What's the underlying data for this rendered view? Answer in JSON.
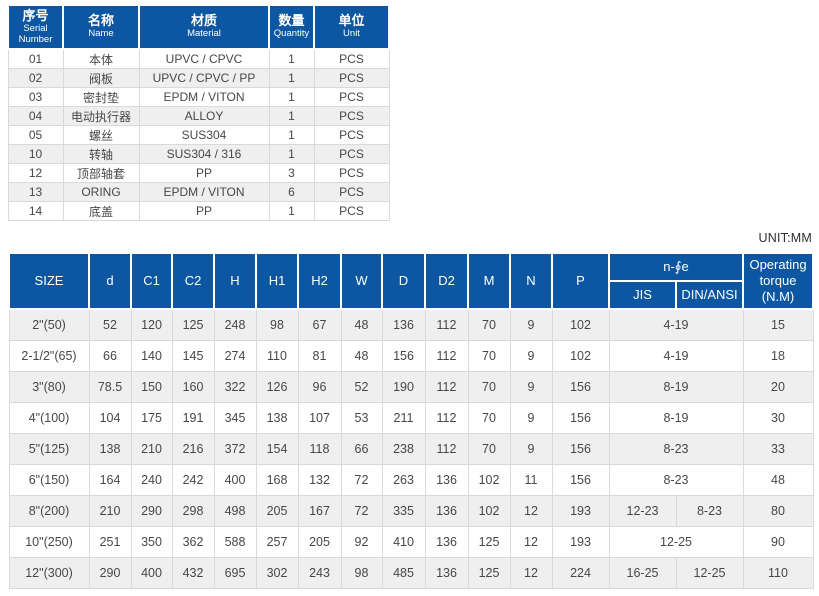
{
  "colors": {
    "header_blue": "#0d57a2",
    "stripe_gray": "#efefef",
    "border_gray": "#d9d9d9",
    "text_dark": "#474747"
  },
  "parts_table": {
    "columns": [
      {
        "zh": "序号",
        "en": "Serial Number"
      },
      {
        "zh": "名称",
        "en": "Name"
      },
      {
        "zh": "材质",
        "en": "Material"
      },
      {
        "zh": "数量",
        "en": "Quantity"
      },
      {
        "zh": "单位",
        "en": "Unit"
      }
    ],
    "rows": [
      [
        "01",
        "本体",
        "UPVC / CPVC",
        "1",
        "PCS"
      ],
      [
        "02",
        "阀板",
        "UPVC / CPVC / PP",
        "1",
        "PCS"
      ],
      [
        "03",
        "密封垫",
        "EPDM / VITON",
        "1",
        "PCS"
      ],
      [
        "04",
        "电动执行器",
        "ALLOY",
        "1",
        "PCS"
      ],
      [
        "05",
        "螺丝",
        "SUS304",
        "1",
        "PCS"
      ],
      [
        "10",
        "转轴",
        "SUS304 / 316",
        "1",
        "PCS"
      ],
      [
        "12",
        "顶部轴套",
        "PP",
        "3",
        "PCS"
      ],
      [
        "13",
        "ORING",
        "EPDM / VITON",
        "6",
        "PCS"
      ],
      [
        "14",
        "底盖",
        "PP",
        "1",
        "PCS"
      ]
    ]
  },
  "dimensions_table": {
    "unit_label": "UNIT:MM",
    "columns": [
      "SIZE",
      "d",
      "C1",
      "C2",
      "H",
      "H1",
      "H2",
      "W",
      "D",
      "D2",
      "M",
      "N",
      "P"
    ],
    "bolt_group": {
      "label": "n-∮e",
      "sub": [
        "JIS",
        "DIN/ANSI"
      ]
    },
    "torque_label": "Operating torque (N.M)",
    "rows": [
      {
        "size": "2\"(50)",
        "values": [
          "52",
          "120",
          "125",
          "248",
          "98",
          "67",
          "48",
          "136",
          "112",
          "70",
          "9",
          "102"
        ],
        "n": [
          "4-19"
        ],
        "torque": "15"
      },
      {
        "size": "2-1/2\"(65)",
        "values": [
          "66",
          "140",
          "145",
          "274",
          "110",
          "81",
          "48",
          "156",
          "112",
          "70",
          "9",
          "102"
        ],
        "n": [
          "4-19"
        ],
        "torque": "18"
      },
      {
        "size": "3\"(80)",
        "values": [
          "78.5",
          "150",
          "160",
          "322",
          "126",
          "96",
          "52",
          "190",
          "112",
          "70",
          "9",
          "156"
        ],
        "n": [
          "8-19"
        ],
        "torque": "20"
      },
      {
        "size": "4\"(100)",
        "values": [
          "104",
          "175",
          "191",
          "345",
          "138",
          "107",
          "53",
          "211",
          "112",
          "70",
          "9",
          "156"
        ],
        "n": [
          "8-19"
        ],
        "torque": "30"
      },
      {
        "size": "5\"(125)",
        "values": [
          "138",
          "210",
          "216",
          "372",
          "154",
          "118",
          "66",
          "238",
          "112",
          "70",
          "9",
          "156"
        ],
        "n": [
          "8-23"
        ],
        "torque": "33"
      },
      {
        "size": "6\"(150)",
        "values": [
          "164",
          "240",
          "242",
          "400",
          "168",
          "132",
          "72",
          "263",
          "136",
          "102",
          "11",
          "156"
        ],
        "n": [
          "8-23"
        ],
        "torque": "48"
      },
      {
        "size": "8\"(200)",
        "values": [
          "210",
          "290",
          "298",
          "498",
          "205",
          "167",
          "72",
          "335",
          "136",
          "102",
          "12",
          "193"
        ],
        "n": [
          "12-23",
          "8-23"
        ],
        "torque": "80"
      },
      {
        "size": "10\"(250)",
        "values": [
          "251",
          "350",
          "362",
          "588",
          "257",
          "205",
          "92",
          "410",
          "136",
          "125",
          "12",
          "193"
        ],
        "n": [
          "12-25"
        ],
        "torque": "90"
      },
      {
        "size": "12\"(300)",
        "values": [
          "290",
          "400",
          "432",
          "695",
          "302",
          "243",
          "98",
          "485",
          "136",
          "125",
          "12",
          "224"
        ],
        "n": [
          "16-25",
          "12-25"
        ],
        "torque": "110"
      }
    ]
  }
}
